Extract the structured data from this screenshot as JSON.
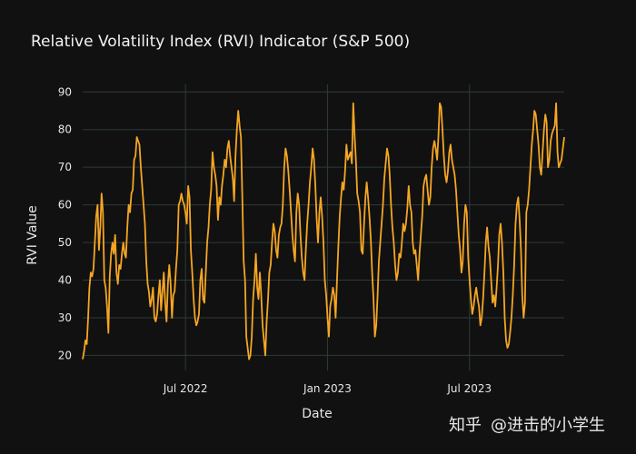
{
  "chart_data": {
    "type": "line",
    "title": "Relative Volatility Index (RVI) Indicator (S&P 500)",
    "xlabel": "Date",
    "ylabel": "RVI Value",
    "x_ticks": [
      "Jul 2022",
      "Jan 2023",
      "Jul 2023"
    ],
    "x_tick_index": [
      76,
      181,
      286
    ],
    "ylim": [
      16,
      92
    ],
    "y_ticks": [
      20,
      30,
      40,
      50,
      60,
      70,
      80,
      90
    ],
    "grid": true,
    "series": [
      {
        "name": "RVI",
        "color": "#f5a623",
        "values": [
          19,
          21,
          24,
          23,
          30,
          38,
          42,
          41,
          43,
          50,
          57,
          60,
          48,
          54,
          63,
          58,
          40,
          38,
          33,
          26,
          41,
          47,
          50,
          47,
          52,
          42,
          39,
          44,
          43,
          47,
          50,
          47,
          46,
          54,
          60,
          58,
          63,
          64,
          72,
          73,
          78,
          77,
          76,
          70,
          65,
          60,
          55,
          45,
          39,
          37,
          33,
          35,
          38,
          30,
          29,
          31,
          36,
          40,
          32,
          37,
          42,
          34,
          29,
          39,
          44,
          39,
          30,
          36,
          37,
          43,
          48,
          60,
          61,
          63,
          61,
          60,
          58,
          55,
          65,
          62,
          48,
          42,
          35,
          30,
          28,
          29,
          31,
          40,
          43,
          35,
          34,
          42,
          50,
          54,
          60,
          64,
          74,
          70,
          68,
          65,
          56,
          62,
          60,
          65,
          68,
          72,
          70,
          75,
          77,
          73,
          70,
          67,
          61,
          73,
          80,
          85,
          81,
          78,
          62,
          45,
          40,
          25,
          22,
          19,
          20,
          25,
          35,
          40,
          47,
          38,
          35,
          42,
          36,
          28,
          24,
          20,
          29,
          35,
          42,
          44,
          50,
          55,
          53,
          48,
          46,
          52,
          54,
          55,
          60,
          70,
          75,
          73,
          69,
          64,
          58,
          52,
          48,
          45,
          58,
          63,
          60,
          52,
          46,
          42,
          40,
          48,
          55,
          60,
          66,
          70,
          75,
          72,
          65,
          56,
          50,
          58,
          62,
          57,
          50,
          40,
          36,
          30,
          25,
          33,
          35,
          38,
          36,
          30,
          40,
          49,
          57,
          62,
          66,
          64,
          69,
          76,
          72,
          73,
          74,
          71,
          87,
          79,
          72,
          63,
          61,
          58,
          48,
          47,
          55,
          62,
          66,
          62,
          57,
          51,
          42,
          35,
          25,
          28,
          36,
          45,
          50,
          55,
          60,
          67,
          71,
          75,
          73,
          68,
          60,
          54,
          50,
          44,
          40,
          42,
          47,
          46,
          50,
          55,
          53,
          55,
          59,
          65,
          60,
          58,
          50,
          47,
          48,
          44,
          40,
          47,
          52,
          57,
          65,
          67,
          68,
          64,
          60,
          62,
          70,
          75,
          77,
          75,
          72,
          78,
          87,
          86,
          80,
          73,
          68,
          66,
          69,
          74,
          76,
          72,
          70,
          68,
          64,
          58,
          52,
          48,
          42,
          45,
          55,
          60,
          58,
          46,
          40,
          35,
          31,
          33,
          36,
          38,
          35,
          33,
          28,
          30,
          35,
          42,
          50,
          54,
          49,
          46,
          40,
          34,
          36,
          33,
          38,
          44,
          52,
          55,
          50,
          42,
          30,
          24,
          22,
          23,
          26,
          30,
          36,
          44,
          55,
          60,
          62,
          56,
          48,
          36,
          30,
          34,
          58,
          60,
          64,
          70,
          76,
          80,
          85,
          84,
          80,
          76,
          70,
          68,
          74,
          80,
          84,
          82,
          70,
          72,
          77,
          79,
          80,
          81,
          87,
          74,
          70,
          71,
          72,
          75,
          78
        ]
      }
    ]
  },
  "watermark": {
    "brand": "知乎",
    "handle": "@进击的小学生"
  }
}
